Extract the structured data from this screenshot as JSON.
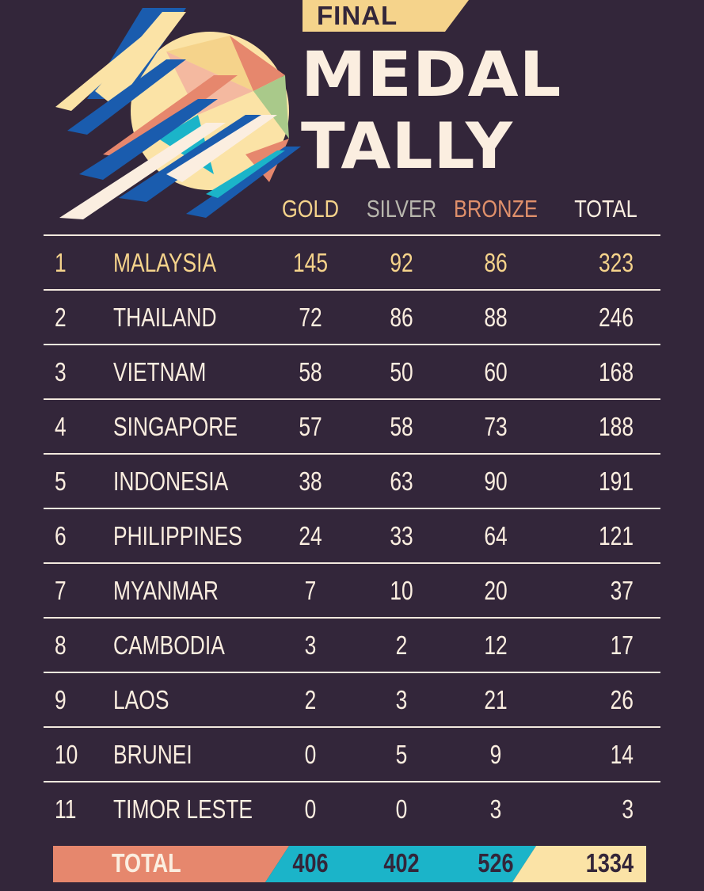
{
  "header": {
    "banner": "FINAL",
    "title_line1": "MEDAL",
    "title_line2": "TALLY"
  },
  "colors": {
    "background": "#33263a",
    "gold": "#f5d38b",
    "silver": "#b8b7ad",
    "bronze": "#e0906b",
    "text": "#fbeee0",
    "teal": "#1bb4c9",
    "salmon": "#e6876d",
    "yellow": "#fbe3a6"
  },
  "columns": {
    "gold": "GOLD",
    "silver": "SILVER",
    "bronze": "BRONZE",
    "total": "TOTAL"
  },
  "rows": [
    {
      "rank": "1",
      "country": "MALAYSIA",
      "gold": "145",
      "silver": "92",
      "bronze": "86",
      "total": "323"
    },
    {
      "rank": "2",
      "country": "THAILAND",
      "gold": "72",
      "silver": "86",
      "bronze": "88",
      "total": "246"
    },
    {
      "rank": "3",
      "country": "VIETNAM",
      "gold": "58",
      "silver": "50",
      "bronze": "60",
      "total": "168"
    },
    {
      "rank": "4",
      "country": "SINGAPORE",
      "gold": "57",
      "silver": "58",
      "bronze": "73",
      "total": "188"
    },
    {
      "rank": "5",
      "country": "INDONESIA",
      "gold": "38",
      "silver": "63",
      "bronze": "90",
      "total": "191"
    },
    {
      "rank": "6",
      "country": "PHILIPPINES",
      "gold": "24",
      "silver": "33",
      "bronze": "64",
      "total": "121"
    },
    {
      "rank": "7",
      "country": "MYANMAR",
      "gold": "7",
      "silver": "10",
      "bronze": "20",
      "total": "37"
    },
    {
      "rank": "8",
      "country": "CAMBODIA",
      "gold": "3",
      "silver": "2",
      "bronze": "12",
      "total": "17"
    },
    {
      "rank": "9",
      "country": "LAOS",
      "gold": "2",
      "silver": "3",
      "bronze": "21",
      "total": "26"
    },
    {
      "rank": "10",
      "country": "BRUNEI",
      "gold": "0",
      "silver": "5",
      "bronze": "9",
      "total": "14"
    },
    {
      "rank": "11",
      "country": "TIMOR LESTE",
      "gold": "0",
      "silver": "0",
      "bronze": "3",
      "total": "3"
    }
  ],
  "totals": {
    "label": "TOTAL",
    "gold": "406",
    "silver": "402",
    "bronze": "526",
    "total": "1334"
  }
}
